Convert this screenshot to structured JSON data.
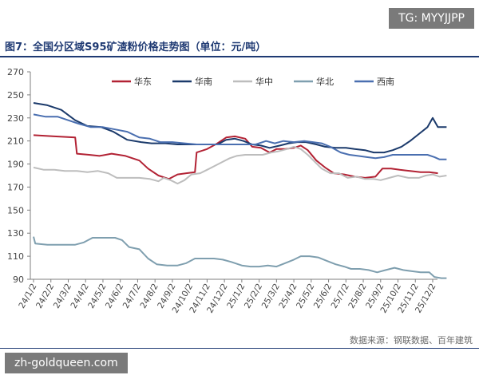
{
  "watermark_top": "TG: MYYJJPP",
  "figure_title": "图7：全国分区域S95矿渣粉价格走势图（单位：元/吨）",
  "source": "数据来源：钢联数据、百年建筑",
  "watermark_bottom": "zh-goldqueen.com",
  "colors": {
    "title": "#1f3a73",
    "华东": "#b22234",
    "华南": "#1b3a6b",
    "华中": "#bdbdbd",
    "华北": "#7f9faf",
    "西南": "#4a6fb0"
  },
  "chart_data": {
    "type": "line",
    "title": "",
    "xlabel": "",
    "ylabel": "",
    "ylim": [
      90,
      270
    ],
    "yticks": [
      90,
      110,
      130,
      150,
      170,
      190,
      210,
      230,
      250,
      270
    ],
    "x_categories": [
      "24/1/2",
      "24/2/2",
      "24/3/2",
      "24/4/2",
      "24/5/2",
      "24/6/2",
      "24/7/2",
      "24/8/2",
      "24/9/2",
      "24/10/2",
      "24/11/2",
      "24/12/2",
      "25/1/2",
      "25/2/2",
      "25/3/2",
      "25/4/2",
      "25/5/2",
      "25/6/2",
      "25/7/2",
      "25/8/2",
      "25/9/2",
      "25/10/2",
      "25/11/2",
      "25/12/2"
    ],
    "grid": false,
    "legend_position": "top",
    "series": [
      {
        "name": "华东",
        "color": "#b22234",
        "points": [
          [
            0,
            215
          ],
          [
            1.2,
            214
          ],
          [
            2.4,
            213
          ],
          [
            2.5,
            199
          ],
          [
            3.2,
            198
          ],
          [
            3.8,
            197
          ],
          [
            4.5,
            199
          ],
          [
            5.3,
            197
          ],
          [
            6.1,
            193
          ],
          [
            6.6,
            186
          ],
          [
            7.2,
            180
          ],
          [
            7.8,
            177
          ],
          [
            8.3,
            181
          ],
          [
            8.8,
            182
          ],
          [
            9.3,
            183
          ],
          [
            9.4,
            200
          ],
          [
            10,
            203
          ],
          [
            10.6,
            208
          ],
          [
            11.1,
            213
          ],
          [
            11.6,
            214
          ],
          [
            12.2,
            212
          ],
          [
            12.6,
            205
          ],
          [
            13.1,
            204
          ],
          [
            13.6,
            200
          ],
          [
            14,
            203
          ],
          [
            14.5,
            203
          ],
          [
            15,
            204
          ],
          [
            15.4,
            206
          ],
          [
            15.8,
            202
          ],
          [
            16.3,
            193
          ],
          [
            16.8,
            187
          ],
          [
            17.3,
            182
          ],
          [
            17.9,
            181
          ],
          [
            18.5,
            179
          ],
          [
            19.1,
            178
          ],
          [
            19.7,
            179
          ],
          [
            20.1,
            186
          ],
          [
            20.6,
            186
          ],
          [
            21.1,
            185
          ],
          [
            21.7,
            184
          ],
          [
            22.3,
            183
          ],
          [
            22.8,
            183
          ],
          [
            23.3,
            182
          ]
        ]
      },
      {
        "name": "华南",
        "color": "#1b3a6b",
        "points": [
          [
            0,
            243
          ],
          [
            0.8,
            241
          ],
          [
            1.6,
            237
          ],
          [
            2.4,
            228
          ],
          [
            3.1,
            223
          ],
          [
            3.9,
            222
          ],
          [
            4.6,
            218
          ],
          [
            5.4,
            211
          ],
          [
            6.2,
            209
          ],
          [
            6.8,
            208
          ],
          [
            7.6,
            208
          ],
          [
            8.3,
            207
          ],
          [
            9.1,
            207
          ],
          [
            10,
            207
          ],
          [
            10.6,
            207
          ],
          [
            11.1,
            211
          ],
          [
            11.6,
            212
          ],
          [
            12.1,
            210
          ],
          [
            12.6,
            207
          ],
          [
            13.1,
            206
          ],
          [
            13.6,
            204
          ],
          [
            14.2,
            206
          ],
          [
            14.7,
            208
          ],
          [
            15.2,
            209
          ],
          [
            15.7,
            209
          ],
          [
            16.3,
            207
          ],
          [
            16.8,
            205
          ],
          [
            17.4,
            204
          ],
          [
            18,
            204
          ],
          [
            18.5,
            203
          ],
          [
            19.1,
            202
          ],
          [
            19.6,
            200
          ],
          [
            20.2,
            200
          ],
          [
            20.7,
            202
          ],
          [
            21.2,
            205
          ],
          [
            21.7,
            210
          ],
          [
            22.2,
            216
          ],
          [
            22.7,
            222
          ],
          [
            23,
            230
          ],
          [
            23.3,
            222
          ],
          [
            23.8,
            222
          ]
        ]
      },
      {
        "name": "华中",
        "color": "#bdbdbd",
        "points": [
          [
            0,
            187
          ],
          [
            0.6,
            185
          ],
          [
            1.2,
            185
          ],
          [
            1.8,
            184
          ],
          [
            2.5,
            184
          ],
          [
            3.1,
            183
          ],
          [
            3.7,
            184
          ],
          [
            4.3,
            182
          ],
          [
            4.8,
            178
          ],
          [
            5.5,
            178
          ],
          [
            6.1,
            178
          ],
          [
            6.7,
            177
          ],
          [
            7.2,
            175
          ],
          [
            7.5,
            178
          ],
          [
            7.9,
            176
          ],
          [
            8.3,
            173
          ],
          [
            8.7,
            176
          ],
          [
            9.1,
            181
          ],
          [
            9.6,
            182
          ],
          [
            10,
            185
          ],
          [
            10.4,
            188
          ],
          [
            10.9,
            192
          ],
          [
            11.3,
            195
          ],
          [
            11.7,
            197
          ],
          [
            12.2,
            198
          ],
          [
            12.7,
            198
          ],
          [
            13.2,
            198
          ],
          [
            13.7,
            200
          ],
          [
            14.1,
            201
          ],
          [
            14.6,
            203
          ],
          [
            15,
            205
          ],
          [
            15.4,
            203
          ],
          [
            15.8,
            198
          ],
          [
            16.2,
            192
          ],
          [
            16.6,
            186
          ],
          [
            17.1,
            182
          ],
          [
            17.6,
            182
          ],
          [
            18.1,
            178
          ],
          [
            18.6,
            179
          ],
          [
            19.1,
            177
          ],
          [
            19.6,
            177
          ],
          [
            20,
            176
          ],
          [
            20.5,
            178
          ],
          [
            21,
            180
          ],
          [
            21.6,
            178
          ],
          [
            22.2,
            178
          ],
          [
            22.6,
            180
          ],
          [
            23,
            181
          ],
          [
            23.4,
            179
          ],
          [
            23.8,
            180
          ]
        ]
      },
      {
        "name": "华北",
        "color": "#7f9faf",
        "points": [
          [
            0,
            127
          ],
          [
            0.1,
            121
          ],
          [
            0.8,
            120
          ],
          [
            1.6,
            120
          ],
          [
            2.4,
            120
          ],
          [
            2.9,
            122
          ],
          [
            3.4,
            126
          ],
          [
            4.1,
            126
          ],
          [
            4.7,
            126
          ],
          [
            5.1,
            124
          ],
          [
            5.5,
            118
          ],
          [
            6.1,
            116
          ],
          [
            6.6,
            108
          ],
          [
            7.1,
            103
          ],
          [
            7.7,
            102
          ],
          [
            8.3,
            102
          ],
          [
            8.8,
            104
          ],
          [
            9.3,
            108
          ],
          [
            9.9,
            108
          ],
          [
            10.4,
            108
          ],
          [
            10.9,
            107
          ],
          [
            11.4,
            105
          ],
          [
            12,
            102
          ],
          [
            12.5,
            101
          ],
          [
            13,
            101
          ],
          [
            13.5,
            102
          ],
          [
            14,
            101
          ],
          [
            14.5,
            104
          ],
          [
            15,
            107
          ],
          [
            15.4,
            110
          ],
          [
            15.9,
            110
          ],
          [
            16.4,
            109
          ],
          [
            16.9,
            106
          ],
          [
            17.4,
            103
          ],
          [
            17.9,
            101
          ],
          [
            18.3,
            99
          ],
          [
            18.8,
            99
          ],
          [
            19.3,
            98
          ],
          [
            19.8,
            96
          ],
          [
            20.3,
            98
          ],
          [
            20.8,
            100
          ],
          [
            21.3,
            98
          ],
          [
            21.8,
            97
          ],
          [
            22.3,
            96
          ],
          [
            22.8,
            96
          ],
          [
            23.1,
            92
          ],
          [
            23.5,
            91
          ],
          [
            23.8,
            91
          ]
        ]
      },
      {
        "name": "西南",
        "color": "#4a6fb0",
        "points": [
          [
            0,
            233
          ],
          [
            0.7,
            231
          ],
          [
            1.4,
            231
          ],
          [
            2,
            228
          ],
          [
            2.6,
            225
          ],
          [
            3.3,
            222
          ],
          [
            4,
            222
          ],
          [
            4.7,
            220
          ],
          [
            5.4,
            218
          ],
          [
            6.1,
            213
          ],
          [
            6.7,
            212
          ],
          [
            7.3,
            209
          ],
          [
            8,
            209
          ],
          [
            8.7,
            208
          ],
          [
            9.4,
            207
          ],
          [
            10.1,
            207
          ],
          [
            10.8,
            207
          ],
          [
            11.5,
            207
          ],
          [
            12.2,
            207
          ],
          [
            12.8,
            207
          ],
          [
            13.4,
            210
          ],
          [
            13.9,
            208
          ],
          [
            14.4,
            210
          ],
          [
            15,
            209
          ],
          [
            15.6,
            210
          ],
          [
            16.1,
            209
          ],
          [
            16.6,
            208
          ],
          [
            17.1,
            205
          ],
          [
            17.7,
            200
          ],
          [
            18.2,
            198
          ],
          [
            18.7,
            197
          ],
          [
            19.2,
            196
          ],
          [
            19.7,
            195
          ],
          [
            20.2,
            196
          ],
          [
            20.7,
            198
          ],
          [
            21.2,
            198
          ],
          [
            21.7,
            198
          ],
          [
            22.2,
            198
          ],
          [
            22.7,
            198
          ],
          [
            23.1,
            196
          ],
          [
            23.4,
            194
          ],
          [
            23.8,
            194
          ]
        ]
      }
    ]
  }
}
